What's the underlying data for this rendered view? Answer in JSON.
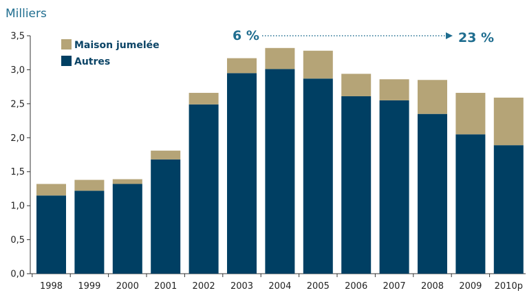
{
  "chart_data": {
    "type": "bar",
    "stacked": true,
    "unit_label": "Milliers",
    "categories": [
      "1998",
      "1999",
      "2000",
      "2001",
      "2002",
      "2003",
      "2004",
      "2005",
      "2006",
      "2007",
      "2008",
      "2009",
      "2010p"
    ],
    "series": [
      {
        "name": "Autres",
        "color": "#003f63",
        "values": [
          1.15,
          1.22,
          1.32,
          1.68,
          2.49,
          2.95,
          3.01,
          2.87,
          2.61,
          2.55,
          2.35,
          2.05,
          1.89
        ]
      },
      {
        "name": "Maison jumelée",
        "color": "#b5a477",
        "values": [
          0.17,
          0.16,
          0.07,
          0.13,
          0.17,
          0.22,
          0.31,
          0.41,
          0.33,
          0.31,
          0.5,
          0.61,
          0.7
        ]
      }
    ],
    "ylim": [
      0,
      3.5
    ],
    "yticks": [
      "0,0",
      "0,5",
      "1,0",
      "1,5",
      "2,0",
      "2,5",
      "3,0",
      "3,5"
    ],
    "grid": false,
    "legend": {
      "placement": "top-left",
      "entries": [
        "Maison jumelée",
        "Autres"
      ]
    },
    "annotation": {
      "start_text": "6 %",
      "end_text": "23 %",
      "arrow_style": "dotted"
    }
  }
}
